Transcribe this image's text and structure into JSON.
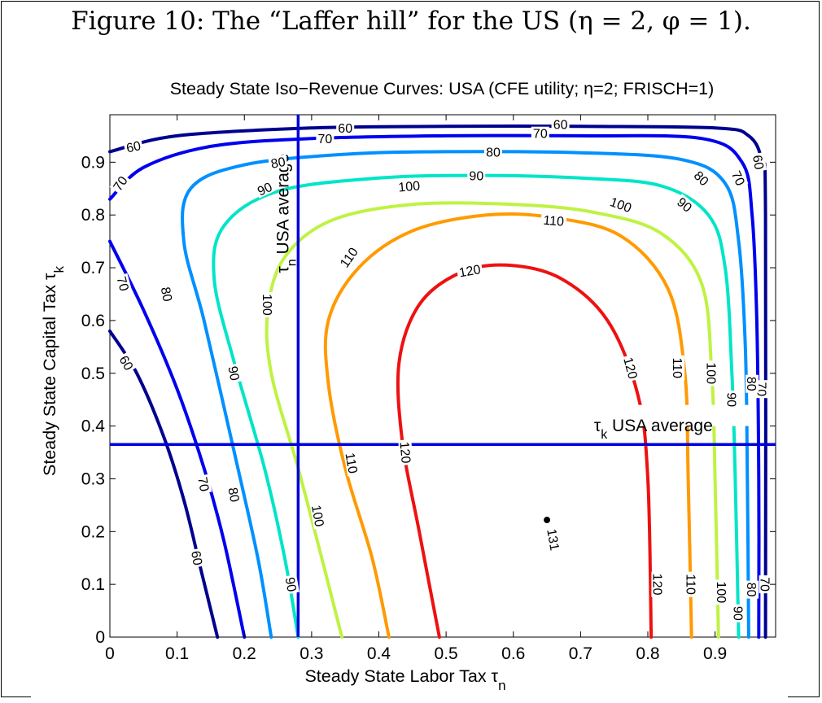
{
  "caption": "Figure 10: The “Laffer hill” for the US (η = 2, φ = 1).",
  "chart_data": {
    "type": "contour",
    "title": "Steady State Iso−Revenue Curves: USA   (CFE utility; η=2; FRISCH=1)",
    "xlabel": "Steady State Labor Tax τ",
    "xlabel_sub": "n",
    "ylabel": "Steady State Capital Tax τ",
    "ylabel_sub": "k",
    "xlim": [
      0,
      0.99
    ],
    "ylim": [
      0,
      0.99
    ],
    "xticks": [
      0,
      0.1,
      0.2,
      0.3,
      0.4,
      0.5,
      0.6,
      0.7,
      0.8,
      0.9
    ],
    "xtick_labels": [
      "0",
      "0.1",
      "0.2",
      "0.3",
      "0.4",
      "0.5",
      "0.6",
      "0.7",
      "0.8",
      "0.9"
    ],
    "yticks": [
      0,
      0.1,
      0.2,
      0.3,
      0.4,
      0.5,
      0.6,
      0.7,
      0.8,
      0.9
    ],
    "ytick_labels": [
      "0",
      "0.1",
      "0.2",
      "0.3",
      "0.4",
      "0.5",
      "0.6",
      "0.7",
      "0.8",
      "0.9"
    ],
    "contours": [
      {
        "level": 60,
        "color": "#00008f",
        "lines": [
          [
            [
              0.0,
              0.92
            ],
            [
              0.1,
              0.95
            ],
            [
              0.3,
              0.965
            ],
            [
              0.5,
              0.968
            ],
            [
              0.7,
              0.968
            ],
            [
              0.9,
              0.965
            ],
            [
              0.95,
              0.95
            ],
            [
              0.97,
              0.9
            ],
            [
              0.975,
              0.8
            ],
            [
              0.975,
              0.0
            ]
          ],
          [
            [
              0.0,
              0.58
            ],
            [
              0.04,
              0.5
            ],
            [
              0.08,
              0.38
            ],
            [
              0.11,
              0.26
            ],
            [
              0.135,
              0.13
            ],
            [
              0.16,
              0.0
            ]
          ]
        ]
      },
      {
        "level": 70,
        "color": "#0000ee",
        "lines": [
          [
            [
              0.0,
              0.83
            ],
            [
              0.05,
              0.89
            ],
            [
              0.15,
              0.93
            ],
            [
              0.3,
              0.945
            ],
            [
              0.5,
              0.95
            ],
            [
              0.7,
              0.95
            ],
            [
              0.88,
              0.945
            ],
            [
              0.94,
              0.9
            ],
            [
              0.955,
              0.8
            ],
            [
              0.962,
              0.6
            ],
            [
              0.965,
              0.3
            ],
            [
              0.965,
              0.0
            ]
          ],
          [
            [
              0.0,
              0.75
            ],
            [
              0.05,
              0.62
            ],
            [
              0.1,
              0.47
            ],
            [
              0.14,
              0.32
            ],
            [
              0.17,
              0.18
            ],
            [
              0.2,
              0.0
            ]
          ]
        ]
      },
      {
        "level": 80,
        "color": "#0090ff",
        "lines": [
          [
            [
              0.24,
              0.0
            ],
            [
              0.22,
              0.15
            ],
            [
              0.185,
              0.35
            ],
            [
              0.14,
              0.6
            ],
            [
              0.11,
              0.75
            ],
            [
              0.12,
              0.85
            ],
            [
              0.2,
              0.895
            ],
            [
              0.35,
              0.915
            ],
            [
              0.5,
              0.92
            ],
            [
              0.7,
              0.918
            ],
            [
              0.85,
              0.905
            ],
            [
              0.915,
              0.86
            ],
            [
              0.935,
              0.75
            ],
            [
              0.945,
              0.55
            ],
            [
              0.948,
              0.3
            ],
            [
              0.95,
              0.0
            ]
          ]
        ]
      },
      {
        "level": 90,
        "color": "#00e5c8",
        "lines": [
          [
            [
              0.28,
              0.0
            ],
            [
              0.26,
              0.15
            ],
            [
              0.23,
              0.32
            ],
            [
              0.185,
              0.52
            ],
            [
              0.155,
              0.68
            ],
            [
              0.17,
              0.78
            ],
            [
              0.25,
              0.845
            ],
            [
              0.4,
              0.87
            ],
            [
              0.55,
              0.875
            ],
            [
              0.7,
              0.87
            ],
            [
              0.82,
              0.855
            ],
            [
              0.89,
              0.8
            ],
            [
              0.915,
              0.7
            ],
            [
              0.925,
              0.5
            ],
            [
              0.93,
              0.3
            ],
            [
              0.935,
              0.0
            ]
          ]
        ]
      },
      {
        "level": 100,
        "color": "#bff243",
        "lines": [
          [
            [
              0.345,
              0.0
            ],
            [
              0.315,
              0.15
            ],
            [
              0.28,
              0.32
            ],
            [
              0.24,
              0.5
            ],
            [
              0.235,
              0.62
            ],
            [
              0.26,
              0.72
            ],
            [
              0.33,
              0.79
            ],
            [
              0.45,
              0.82
            ],
            [
              0.6,
              0.82
            ],
            [
              0.72,
              0.805
            ],
            [
              0.82,
              0.765
            ],
            [
              0.88,
              0.67
            ],
            [
              0.895,
              0.5
            ],
            [
              0.9,
              0.3
            ],
            [
              0.905,
              0.0
            ]
          ]
        ]
      },
      {
        "level": 110,
        "color": "#ff9a00",
        "lines": [
          [
            [
              0.415,
              0.0
            ],
            [
              0.39,
              0.15
            ],
            [
              0.35,
              0.32
            ],
            [
              0.325,
              0.48
            ],
            [
              0.325,
              0.6
            ],
            [
              0.37,
              0.7
            ],
            [
              0.45,
              0.77
            ],
            [
              0.56,
              0.8
            ],
            [
              0.66,
              0.795
            ],
            [
              0.76,
              0.76
            ],
            [
              0.83,
              0.66
            ],
            [
              0.855,
              0.5
            ],
            [
              0.86,
              0.3
            ],
            [
              0.865,
              0.0
            ]
          ]
        ]
      },
      {
        "level": 120,
        "color": "#ee1111",
        "lines": [
          [
            [
              0.49,
              0.0
            ],
            [
              0.46,
              0.2
            ],
            [
              0.435,
              0.37
            ],
            [
              0.43,
              0.52
            ],
            [
              0.46,
              0.63
            ],
            [
              0.52,
              0.69
            ],
            [
              0.59,
              0.705
            ],
            [
              0.67,
              0.68
            ],
            [
              0.74,
              0.6
            ],
            [
              0.785,
              0.46
            ],
            [
              0.8,
              0.3
            ],
            [
              0.805,
              0.0
            ]
          ]
        ]
      }
    ],
    "contour_labels": [
      {
        "text": "60",
        "x": 0.035,
        "y": 0.93,
        "rot": -12
      },
      {
        "text": "60",
        "x": 0.35,
        "y": 0.965,
        "rot": 0
      },
      {
        "text": "60",
        "x": 0.67,
        "y": 0.972,
        "rot": 0
      },
      {
        "text": "60",
        "x": 0.965,
        "y": 0.9,
        "rot": 80
      },
      {
        "text": "60",
        "x": 0.025,
        "y": 0.52,
        "rot": 60
      },
      {
        "text": "60",
        "x": 0.13,
        "y": 0.15,
        "rot": 80
      },
      {
        "text": "70",
        "x": 0.32,
        "y": 0.945,
        "rot": 0
      },
      {
        "text": "70",
        "x": 0.64,
        "y": 0.955,
        "rot": 0
      },
      {
        "text": "70",
        "x": 0.935,
        "y": 0.87,
        "rot": 65
      },
      {
        "text": "70",
        "x": 0.015,
        "y": 0.86,
        "rot": -55
      },
      {
        "text": "70",
        "x": 0.02,
        "y": 0.67,
        "rot": 75
      },
      {
        "text": "70",
        "x": 0.14,
        "y": 0.29,
        "rot": 80
      },
      {
        "text": "70",
        "x": 0.97,
        "y": 0.47,
        "rot": 90
      },
      {
        "text": "70",
        "x": 0.975,
        "y": 0.1,
        "rot": 90
      },
      {
        "text": "80",
        "x": 0.25,
        "y": 0.9,
        "rot": -10
      },
      {
        "text": "80",
        "x": 0.57,
        "y": 0.92,
        "rot": 0
      },
      {
        "text": "80",
        "x": 0.88,
        "y": 0.87,
        "rot": 45
      },
      {
        "text": "80",
        "x": 0.085,
        "y": 0.65,
        "rot": 80
      },
      {
        "text": "80",
        "x": 0.185,
        "y": 0.27,
        "rot": 80
      },
      {
        "text": "80",
        "x": 0.955,
        "y": 0.48,
        "rot": 90
      },
      {
        "text": "80",
        "x": 0.955,
        "y": 0.09,
        "rot": 90
      },
      {
        "text": "90",
        "x": 0.23,
        "y": 0.85,
        "rot": -25
      },
      {
        "text": "90",
        "x": 0.545,
        "y": 0.875,
        "rot": 0
      },
      {
        "text": "90",
        "x": 0.855,
        "y": 0.82,
        "rot": 40
      },
      {
        "text": "90",
        "x": 0.185,
        "y": 0.5,
        "rot": 80
      },
      {
        "text": "90",
        "x": 0.27,
        "y": 0.1,
        "rot": 80
      },
      {
        "text": "90",
        "x": 0.925,
        "y": 0.45,
        "rot": 90
      },
      {
        "text": "90",
        "x": 0.935,
        "y": 0.045,
        "rot": 90
      },
      {
        "text": "100",
        "x": 0.235,
        "y": 0.63,
        "rot": 90
      },
      {
        "text": "100",
        "x": 0.445,
        "y": 0.855,
        "rot": -5
      },
      {
        "text": "100",
        "x": 0.76,
        "y": 0.82,
        "rot": 20
      },
      {
        "text": "100",
        "x": 0.31,
        "y": 0.23,
        "rot": 80
      },
      {
        "text": "100",
        "x": 0.895,
        "y": 0.5,
        "rot": 90
      },
      {
        "text": "100",
        "x": 0.91,
        "y": 0.085,
        "rot": 90
      },
      {
        "text": "110",
        "x": 0.355,
        "y": 0.72,
        "rot": -55
      },
      {
        "text": "110",
        "x": 0.66,
        "y": 0.79,
        "rot": 5
      },
      {
        "text": "110",
        "x": 0.36,
        "y": 0.33,
        "rot": 80
      },
      {
        "text": "110",
        "x": 0.845,
        "y": 0.51,
        "rot": 90
      },
      {
        "text": "110",
        "x": 0.865,
        "y": 0.1,
        "rot": 90
      },
      {
        "text": "120",
        "x": 0.535,
        "y": 0.695,
        "rot": -10
      },
      {
        "text": "120",
        "x": 0.775,
        "y": 0.51,
        "rot": 75
      },
      {
        "text": "120",
        "x": 0.44,
        "y": 0.35,
        "rot": 85
      },
      {
        "text": "120",
        "x": 0.815,
        "y": 0.1,
        "rot": 90
      }
    ],
    "reference_lines": [
      {
        "orientation": "vertical",
        "x": 0.28,
        "label": "τ",
        "label_sub": "n",
        "label_tail": " USA  average",
        "color": "#0000dd"
      },
      {
        "orientation": "horizontal",
        "y": 0.365,
        "label": "τ",
        "label_sub": "k",
        "label_tail": " USA  average",
        "color": "#0000dd"
      }
    ],
    "max_point": {
      "x": 0.65,
      "y": 0.222,
      "label": "131"
    }
  }
}
